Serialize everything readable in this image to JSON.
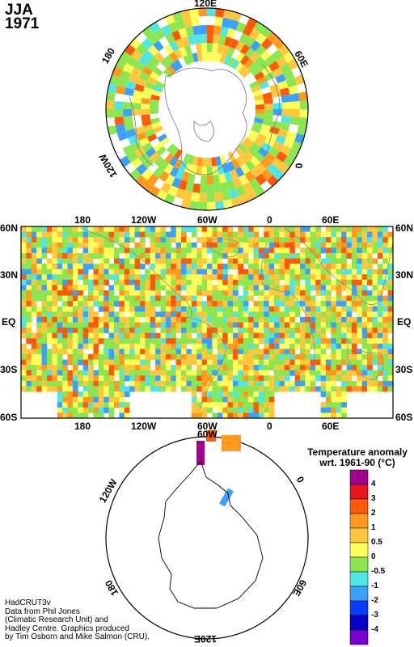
{
  "season": "JJA",
  "year": "1971",
  "north_polar": {
    "labels": {
      "top": "120E",
      "right": "60E",
      "lower_right": "0",
      "left": "180",
      "lower_left": "120W"
    }
  },
  "equirect": {
    "top_lon_labels": [
      "180",
      "120W",
      "60W",
      "0",
      "60E"
    ],
    "bottom_lon_labels": [
      "180",
      "120W",
      "60W",
      "0",
      "60E"
    ],
    "lat_labels": [
      "60N",
      "30N",
      "EQ",
      "30S",
      "60S"
    ]
  },
  "south_polar": {
    "labels": {
      "top": "60W",
      "left": "120W",
      "right": "0",
      "lower_left": "180",
      "lower_right": "60E",
      "bottom": "120E"
    }
  },
  "legend": {
    "title_line1": "Temperature anomaly",
    "title_line2": "wrt. 1961-90  (°C)",
    "bins": [
      {
        "label": "4",
        "color": "#a0008c"
      },
      {
        "label": "3",
        "color": "#e8141e"
      },
      {
        "label": "2",
        "color": "#ff5a0a"
      },
      {
        "label": "1",
        "color": "#ff9a1e"
      },
      {
        "label": "0.5",
        "color": "#ffc83c"
      },
      {
        "label": "0",
        "color": "#ffff5a"
      },
      {
        "label": "-0.5",
        "color": "#8ce650"
      },
      {
        "label": "-1",
        "color": "#50e6e6"
      },
      {
        "label": "-2",
        "color": "#3ca0ff"
      },
      {
        "label": "-3",
        "color": "#0a3cff"
      },
      {
        "label": "-4",
        "color": "#0000c8"
      },
      {
        "label": "",
        "color": "#7800d2"
      }
    ]
  },
  "credit": [
    "HadCRUT3v",
    "Data from Phil Jones",
    "(Climatic Research Unit) and",
    "Hadley Centre.  Graphics produced",
    "by Tim Osborn and Mike Salmon (CRU)."
  ]
}
